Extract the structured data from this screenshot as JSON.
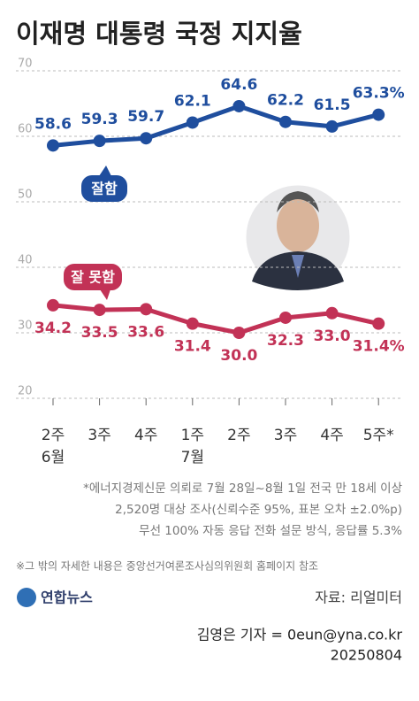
{
  "chart_data": {
    "type": "line",
    "title": "이재명 대통령 국정 지지율",
    "categories": [
      "2주",
      "3주",
      "4주",
      "1주",
      "2주",
      "3주",
      "4주",
      "5주*"
    ],
    "sublabels": [
      "6월",
      null,
      null,
      "7월",
      null,
      null,
      null,
      null
    ],
    "series": [
      {
        "name": "잘함",
        "color": "#1f4e9e",
        "values": [
          58.6,
          59.3,
          59.7,
          62.1,
          64.6,
          62.2,
          61.5,
          63.3
        ],
        "value_labels": [
          "58.6",
          "59.3",
          "59.7",
          "62.1",
          "64.6",
          "62.2",
          "61.5",
          "63.3%"
        ]
      },
      {
        "name": "잘 못함",
        "color": "#c23256",
        "values": [
          34.2,
          33.5,
          33.6,
          31.4,
          30.0,
          32.3,
          33.0,
          31.4
        ],
        "value_labels": [
          "34.2",
          "33.5",
          "33.6",
          "31.4",
          "30.0",
          "32.3",
          "33.0",
          "31.4%"
        ]
      }
    ],
    "ylim": [
      20,
      70
    ],
    "yticks": [
      20,
      30,
      40,
      50,
      60,
      70
    ],
    "grid": true,
    "notes": [
      "*에너지경제신문 의뢰로 7월 28일~8월 1일 전국 만 18세 이상",
      "2,520명 대상 조사(신뢰수준 95%, 표본 오차 ±2.0%p)",
      "무선 100% 자동 응답 전화 설문 방식, 응답률 5.3%"
    ],
    "reference": "※그 밖의 자세한 내용은 중앙선거여론조사심의위원회 홈페이지 참조",
    "logo": "연합뉴스",
    "source": "자료: 리얼미터",
    "byline": "김영은 기자 = 0eun@yna.co.kr",
    "date": "20250804"
  }
}
